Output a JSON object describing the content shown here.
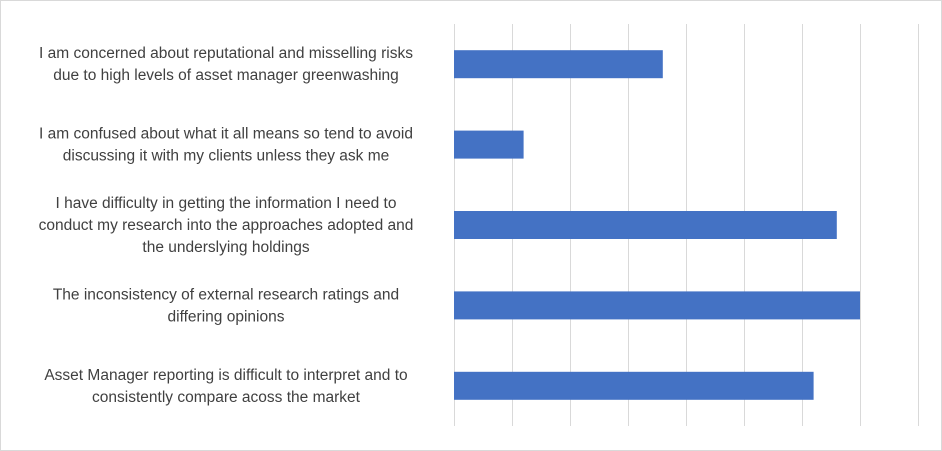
{
  "chart_data": {
    "type": "bar",
    "orientation": "horizontal",
    "categories": [
      [
        "I am concerned about reputational and misselling risks",
        "due to high levels of asset manager greenwashing"
      ],
      [
        "I am confused about what it all means so tend to avoid",
        "discussing it with my clients unless they ask me"
      ],
      [
        "I have difficulty in getting the information I need to",
        "conduct my research into the approaches adopted and",
        "the underslying holdings"
      ],
      [
        "The inconsistency of external research ratings and",
        "differing opinions"
      ],
      [
        "Asset Manager reporting is difficult to interpret and to",
        "consistently compare acoss the market"
      ]
    ],
    "values": [
      36,
      12,
      66,
      70,
      62
    ],
    "xlim": [
      0,
      80
    ],
    "x_major_step": 10,
    "grid": true,
    "legend": "none",
    "title": "",
    "xlabel": "",
    "ylabel": "",
    "bar_color": "#4472c4",
    "grid_color": "#d9d9d9"
  }
}
